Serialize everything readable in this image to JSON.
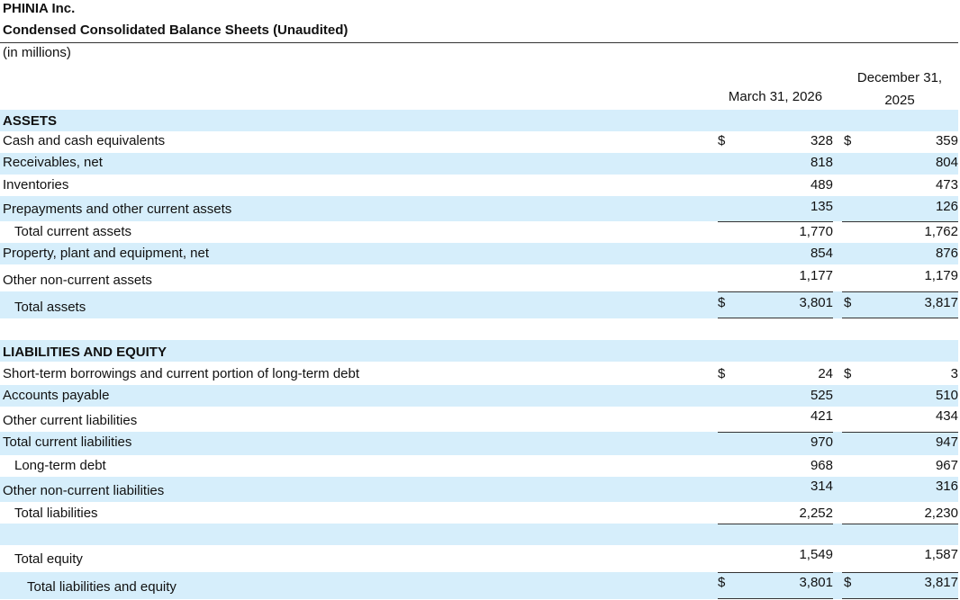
{
  "header": {
    "company": "PHINIA Inc.",
    "title": "Condensed Consolidated Balance Sheets (Unaudited)",
    "units": "(in millions)",
    "col1": "March 31, 2026",
    "col2_line1": "December 31,",
    "col2_line2": "2025"
  },
  "rows": [
    {
      "label": "ASSETS",
      "bold": true,
      "shade": true
    },
    {
      "label": "Cash and cash equivalents",
      "d1": "$",
      "v1": "328",
      "d2": "$",
      "v2": "359"
    },
    {
      "label": "Receivables, net",
      "v1": "818",
      "v2": "804",
      "shade": true
    },
    {
      "label": "Inventories",
      "v1": "489",
      "v2": "473"
    },
    {
      "label": "Prepayments and other current assets",
      "v1": "135",
      "v2": "126",
      "shade": true
    },
    {
      "label": "Total current assets",
      "v1": "1,770",
      "v2": "1,762",
      "indent": 1
    },
    {
      "label": "Property, plant and equipment, net",
      "v1": "854",
      "v2": "876",
      "shade": true
    },
    {
      "label": "Other non-current assets",
      "v1": "1,177",
      "v2": "1,179"
    },
    {
      "label": "Total assets",
      "d1": "$",
      "v1": "3,801",
      "d2": "$",
      "v2": "3,817",
      "indent": 1,
      "shade": true
    },
    {
      "label": ""
    },
    {
      "label": "LIABILITIES AND EQUITY",
      "bold": true,
      "shade": true
    },
    {
      "label": "Short-term borrowings and current portion of long-term debt",
      "d1": "$",
      "v1": "24",
      "d2": "$",
      "v2": "3"
    },
    {
      "label": "Accounts payable",
      "v1": "525",
      "v2": "510",
      "shade": true
    },
    {
      "label": "Other current liabilities",
      "v1": "421",
      "v2": "434"
    },
    {
      "label": "Total current liabilities",
      "v1": "970",
      "v2": "947",
      "shade": true
    },
    {
      "label": "Long-term debt",
      "v1": "968",
      "v2": "967",
      "indent": 1
    },
    {
      "label": "Other non-current liabilities",
      "v1": "314",
      "v2": "316",
      "shade": true
    },
    {
      "label": "Total liabilities",
      "v1": "2,252",
      "v2": "2,230",
      "indent": 1
    },
    {
      "label": "",
      "shade": true
    },
    {
      "label": "Total equity",
      "v1": "1,549",
      "v2": "1,587",
      "indent": 1
    },
    {
      "label": "Total liabilities and equity",
      "d1": "$",
      "v1": "3,801",
      "d2": "$",
      "v2": "3,817",
      "indent": 2,
      "shade": true
    }
  ]
}
